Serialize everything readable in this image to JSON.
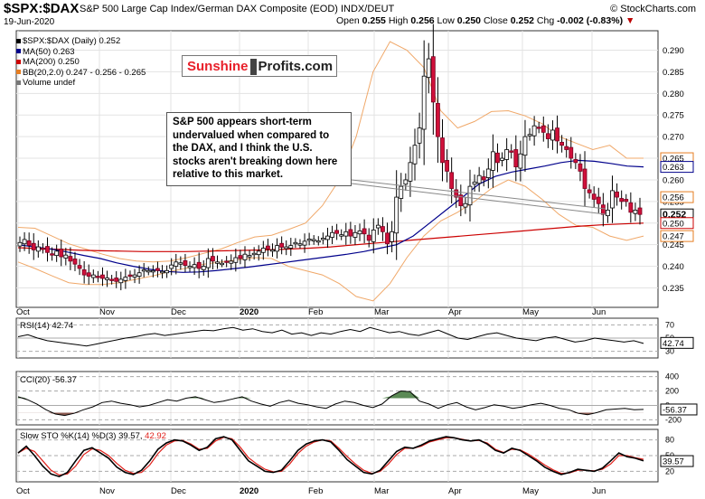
{
  "header": {
    "symbol": "$SPX:$DAX",
    "name": "S&P 500 Large Cap Index/German DAX Composite (EOD) INDX/DEUT",
    "brand": "© StockCharts.com",
    "date": "19-Jun-2020",
    "ohlc": {
      "open_label": "Open",
      "open": "0.255",
      "high_label": "High",
      "high": "0.256",
      "low_label": "Low",
      "low": "0.250",
      "close_label": "Close",
      "close": "0.252",
      "chg_label": "Chg",
      "chg": "-0.002 (-0.83%)"
    }
  },
  "legend": {
    "items": [
      {
        "text": "$SPX:$DAX (Daily) 0.252",
        "color": "#000000"
      },
      {
        "text": "MA(50) 0.263",
        "color": "#00008b"
      },
      {
        "text": "MA(200) 0.250",
        "color": "#cc0000"
      },
      {
        "text": "BB(20,2.0) 0.247 - 0.256 - 0.265",
        "color": "#e67e22"
      },
      {
        "text": "Volume undef",
        "color": "#777777"
      }
    ]
  },
  "logo": {
    "part1": "Sunshine",
    "part2": "Profits.com"
  },
  "annotation": "S&P 500 appears short-term undervalued when compared to the DAX, and I think the U.S. stocks aren't breaking down here relative to this market.",
  "indicators": {
    "rsi": {
      "label": "RSI(14) 42.74",
      "value_tag": "42.74"
    },
    "cci": {
      "label": "CCI(20) -56.37",
      "value_tag": "-56.37"
    },
    "sto": {
      "label_a": "Slow STO %K(14) %D(3) 39.57,",
      "label_b": "42.92",
      "value_tag": "39.57"
    }
  },
  "chart_data": [
    {
      "type": "candlestick",
      "title": "$SPX:$DAX",
      "y_ticks": [
        0.235,
        0.24,
        0.245,
        0.25,
        0.255,
        0.26,
        0.265,
        0.27,
        0.275,
        0.28,
        0.285,
        0.29
      ],
      "y_tick_labels": [
        "0.235",
        "0.240",
        "0.245",
        "0.250",
        "0.255",
        "0.260",
        "0.265",
        "0.270",
        "0.275",
        "0.280",
        "0.285",
        "0.290"
      ],
      "ylim": [
        0.2305,
        0.2945
      ],
      "x_labels": [
        "Oct",
        "Nov",
        "Dec",
        "2020",
        "Feb",
        "Mar",
        "Apr",
        "May",
        "Jun"
      ],
      "close": [
        0.2455,
        0.2462,
        0.2448,
        0.2438,
        0.2445,
        0.2441,
        0.2432,
        0.2428,
        0.2435,
        0.2422,
        0.2426,
        0.2412,
        0.2405,
        0.2395,
        0.238,
        0.2377,
        0.238,
        0.2375,
        0.2372,
        0.2373,
        0.2368,
        0.2365,
        0.237,
        0.2375,
        0.2378,
        0.238,
        0.2385,
        0.2392,
        0.239,
        0.239,
        0.239,
        0.2388,
        0.239,
        0.2403,
        0.241,
        0.2408,
        0.2402,
        0.24,
        0.2404,
        0.2395,
        0.24,
        0.2418,
        0.2412,
        0.241,
        0.2407,
        0.241,
        0.2412,
        0.242,
        0.2418,
        0.2428,
        0.2425,
        0.243,
        0.2435,
        0.2442,
        0.244,
        0.2438,
        0.2448,
        0.2444,
        0.2445,
        0.2448,
        0.2455,
        0.2452,
        0.2458,
        0.2463,
        0.2462,
        0.2459,
        0.2465,
        0.247,
        0.2478,
        0.2476,
        0.2473,
        0.248,
        0.247,
        0.2478,
        0.2482,
        0.2475,
        0.246,
        0.2484,
        0.2495,
        0.248,
        0.2452,
        0.248,
        0.256,
        0.2585,
        0.26,
        0.264,
        0.268,
        0.272,
        0.284,
        0.288,
        0.278,
        0.27,
        0.264,
        0.262,
        0.258,
        0.256,
        0.254,
        0.2545,
        0.2585,
        0.2595,
        0.261,
        0.26,
        0.2625,
        0.2665,
        0.264,
        0.265,
        0.267,
        0.2665,
        0.263,
        0.266,
        0.27,
        0.2705,
        0.2725,
        0.272,
        0.271,
        0.2695,
        0.2715,
        0.269,
        0.268,
        0.267,
        0.265,
        0.264,
        0.262,
        0.258,
        0.257,
        0.2555,
        0.2545,
        0.252,
        0.253,
        0.2575,
        0.256,
        0.255,
        0.255,
        0.2525,
        0.253,
        0.252
      ],
      "ma50": [
        0.245,
        0.2445,
        0.244,
        0.2433,
        0.2425,
        0.2418,
        0.2408,
        0.24,
        0.2393,
        0.2388,
        0.2386,
        0.2387,
        0.239,
        0.2394,
        0.2398,
        0.2403,
        0.2408,
        0.2413,
        0.2418,
        0.2423,
        0.2428,
        0.2434,
        0.2442,
        0.245,
        0.247,
        0.25,
        0.253,
        0.256,
        0.259,
        0.2608,
        0.2618,
        0.2625,
        0.2632,
        0.264,
        0.2645,
        0.2643,
        0.2638,
        0.2632,
        0.263
      ],
      "ma200": [
        0.2443,
        0.2441,
        0.2439,
        0.2437,
        0.2436,
        0.2435,
        0.2434,
        0.2434,
        0.2434,
        0.2435,
        0.2436,
        0.2437,
        0.2438,
        0.244,
        0.2442,
        0.2445,
        0.2449,
        0.2453,
        0.2457,
        0.2461,
        0.2465,
        0.2469,
        0.2473,
        0.2477,
        0.2481,
        0.2485,
        0.2489,
        0.2493,
        0.2496,
        0.2498,
        0.25
      ],
      "bb_upper": [
        0.249,
        0.2488,
        0.247,
        0.2452,
        0.244,
        0.2428,
        0.2418,
        0.2412,
        0.241,
        0.2412,
        0.242,
        0.243,
        0.244,
        0.2455,
        0.2468,
        0.2472,
        0.2485,
        0.25,
        0.254,
        0.26,
        0.27,
        0.285,
        0.292,
        0.29,
        0.286,
        0.276,
        0.272,
        0.2735,
        0.2758,
        0.276,
        0.2748,
        0.273,
        0.27,
        0.2685,
        0.267,
        0.268,
        0.265,
        0.265
      ],
      "bb_lower": [
        0.241,
        0.2395,
        0.2378,
        0.2362,
        0.2358,
        0.2358,
        0.2362,
        0.237,
        0.2378,
        0.2388,
        0.2396,
        0.2405,
        0.241,
        0.2415,
        0.242,
        0.2418,
        0.24,
        0.239,
        0.238,
        0.236,
        0.233,
        0.232,
        0.236,
        0.242,
        0.247,
        0.2505,
        0.2525,
        0.255,
        0.258,
        0.26,
        0.2585,
        0.2555,
        0.252,
        0.2495,
        0.249,
        0.247,
        0.246,
        0.247
      ],
      "price_tags": [
        {
          "value": 0.265,
          "label": "0.265"
        },
        {
          "value": 0.263,
          "label": "0.263"
        },
        {
          "value": 0.256,
          "label": "0.256"
        },
        {
          "value": 0.252,
          "label": "0.252"
        },
        {
          "value": 0.25,
          "label": "0.250"
        },
        {
          "value": 0.247,
          "label": "0.247"
        }
      ]
    },
    {
      "type": "line",
      "title": "RSI(14) 42.74",
      "ylim": [
        20,
        80
      ],
      "y_tick_labels": [
        "70",
        "50",
        "30"
      ],
      "y_ticks": [
        70,
        50,
        30
      ],
      "values": [
        52,
        55,
        50,
        46,
        44,
        42,
        40,
        38,
        41,
        44,
        47,
        50,
        52,
        55,
        57,
        54,
        56,
        58,
        60,
        62,
        61,
        64,
        66,
        62,
        64,
        60,
        58,
        62,
        56,
        58,
        54,
        58,
        56,
        60,
        63,
        60,
        66,
        62,
        58,
        60,
        56,
        54,
        58,
        62,
        56,
        50,
        48,
        52,
        56,
        58,
        54,
        50,
        48,
        46,
        50,
        52,
        48,
        44,
        46,
        50,
        48,
        46,
        44,
        46,
        42
      ]
    },
    {
      "type": "line",
      "title": "CCI(20) -56.37",
      "ylim": [
        -270,
        470
      ],
      "y_tick_labels": [
        "400",
        "200",
        "0",
        "-200"
      ],
      "y_ticks": [
        400,
        200,
        0,
        -200
      ],
      "values": [
        120,
        80,
        20,
        -60,
        -120,
        -140,
        -110,
        -60,
        -20,
        40,
        60,
        30,
        10,
        -20,
        0,
        40,
        80,
        60,
        100,
        120,
        80,
        40,
        60,
        90,
        120,
        60,
        20,
        -10,
        40,
        70,
        30,
        10,
        -20,
        -40,
        20,
        60,
        40,
        0,
        -30,
        20,
        130,
        200,
        190,
        60,
        20,
        -40,
        10,
        40,
        -20,
        -60,
        -30,
        10,
        -10,
        -40,
        -20,
        10,
        30,
        0,
        -40,
        -60,
        -110,
        -130,
        -100,
        -60,
        -50,
        -40,
        -60,
        -56
      ]
    },
    {
      "type": "line",
      "title": "Slow STO %K(14) %D(3) 39.57, 42.92",
      "ylim": [
        0,
        100
      ],
      "y_tick_labels": [
        "80",
        "50",
        "20"
      ],
      "y_ticks": [
        80,
        50,
        20
      ],
      "k_values": [
        55,
        68,
        50,
        30,
        15,
        10,
        18,
        40,
        60,
        65,
        55,
        45,
        28,
        18,
        14,
        22,
        40,
        62,
        74,
        80,
        78,
        70,
        60,
        66,
        82,
        86,
        80,
        60,
        40,
        30,
        20,
        18,
        22,
        40,
        60,
        72,
        78,
        80,
        76,
        60,
        42,
        30,
        18,
        15,
        22,
        40,
        58,
        66,
        64,
        70,
        78,
        82,
        86,
        84,
        80,
        78,
        80,
        72,
        60,
        55,
        64,
        60,
        50,
        40,
        28,
        20,
        14,
        18,
        24,
        22,
        20,
        26,
        40,
        55,
        48,
        45,
        40
      ],
      "d_values": [
        55,
        64,
        58,
        40,
        22,
        13,
        15,
        30,
        52,
        63,
        60,
        50,
        35,
        22,
        16,
        18,
        32,
        54,
        70,
        78,
        79,
        72,
        62,
        64,
        78,
        85,
        82,
        66,
        46,
        34,
        24,
        19,
        20,
        34,
        54,
        68,
        76,
        80,
        78,
        64,
        48,
        34,
        22,
        16,
        20,
        34,
        52,
        64,
        64,
        68,
        76,
        80,
        84,
        84,
        81,
        78,
        79,
        74,
        62,
        56,
        62,
        61,
        53,
        43,
        32,
        23,
        16,
        17,
        22,
        22,
        21,
        24,
        34,
        50,
        50,
        46,
        43
      ]
    }
  ]
}
